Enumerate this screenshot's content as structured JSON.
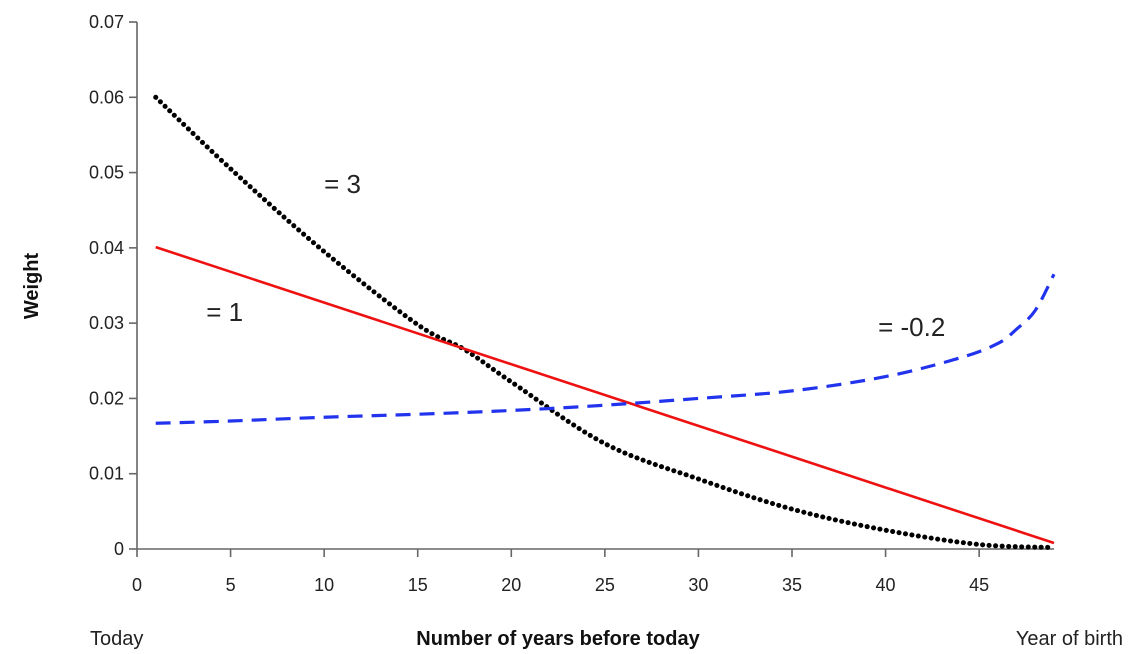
{
  "chart_data": {
    "type": "line",
    "xlabel": "Number of years  before today",
    "ylabel": "Weight",
    "xlim": [
      0,
      49
    ],
    "ylim": [
      0,
      0.07
    ],
    "xticks": [
      0,
      5,
      10,
      15,
      20,
      25,
      30,
      35,
      40,
      45
    ],
    "yticks": [
      0,
      0.01,
      0.02,
      0.03,
      0.04,
      0.05,
      0.06,
      0.07
    ],
    "xtick_labels": [
      "0",
      "5",
      "10",
      "15",
      "20",
      "25",
      "30",
      "35",
      "40",
      "45"
    ],
    "ytick_labels": [
      "0",
      "0.01",
      "0.02",
      "0.03",
      "0.04",
      "0.05",
      "0.06",
      "0.07"
    ],
    "x_end_labels": {
      "left": "Today",
      "right": "Year of birth"
    },
    "grid": false,
    "series": [
      {
        "color": "#000000",
        "style": "dotted",
        "x": [
          1,
          5,
          10,
          15,
          17.5,
          20,
          25,
          30,
          35,
          40,
          45,
          49
        ],
        "y": [
          0.06,
          0.0505,
          0.0395,
          0.0298,
          0.0265,
          0.0222,
          0.014,
          0.0093,
          0.0053,
          0.0025,
          0.0006,
          0.0002
        ]
      },
      {
        "color": "#ee1111",
        "style": "solid",
        "x": [
          1,
          49
        ],
        "y": [
          0.0401,
          0.0008
        ]
      },
      {
        "color": "#2233ee",
        "style": "dashed",
        "x": [
          1,
          5,
          10,
          15,
          20,
          25,
          30,
          35,
          40,
          44,
          46,
          47,
          48,
          49
        ],
        "y": [
          0.0167,
          0.017,
          0.0175,
          0.0179,
          0.0184,
          0.0191,
          0.02,
          0.021,
          0.0229,
          0.0254,
          0.0273,
          0.0292,
          0.0317,
          0.0365
        ]
      }
    ],
    "annotations": [
      {
        "text": "= 3",
        "x": 10,
        "y": 0.0485
      },
      {
        "text": "= 1",
        "x": 3.7,
        "y": 0.0315
      },
      {
        "text": "= -0.2",
        "x": 39.6,
        "y": 0.0295
      }
    ]
  }
}
